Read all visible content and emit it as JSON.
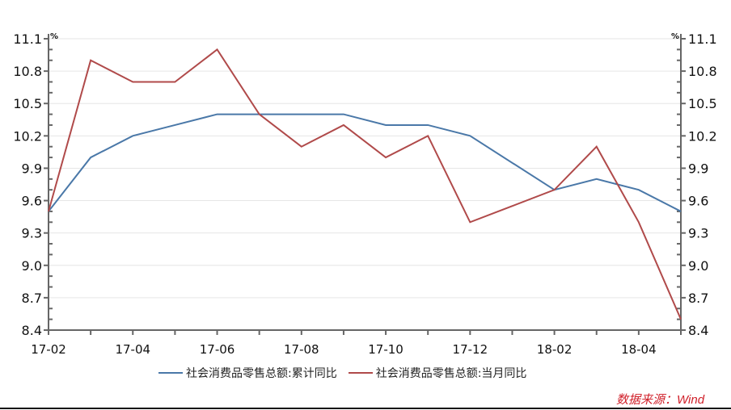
{
  "chart_data": {
    "type": "line",
    "title": "",
    "xlabel": "",
    "ylabel": "%",
    "y2label": "%",
    "ylim": [
      8.4,
      11.1
    ],
    "yticks": [
      8.4,
      8.7,
      9.0,
      9.3,
      9.6,
      9.9,
      10.2,
      10.5,
      10.8,
      11.1
    ],
    "x": [
      "17-02",
      "17-03",
      "17-04",
      "17-05",
      "17-06",
      "17-07",
      "17-08",
      "17-09",
      "17-10",
      "17-11",
      "17-12",
      "18-01",
      "18-02",
      "18-03",
      "18-04",
      "18-05"
    ],
    "xtick_labels": [
      "17-02",
      "17-04",
      "17-06",
      "17-08",
      "17-10",
      "17-12",
      "18-02",
      "18-04"
    ],
    "grid": true,
    "legend_position": "bottom",
    "series": [
      {
        "name": "社会消费品零售总额:累计同比",
        "color": "#4a78a8",
        "values": [
          9.5,
          10.0,
          10.2,
          10.3,
          10.4,
          10.4,
          10.4,
          10.4,
          10.3,
          10.3,
          10.2,
          null,
          9.7,
          9.8,
          9.7,
          9.5
        ]
      },
      {
        "name": "社会消费品零售总额:当月同比",
        "color": "#b04a4a",
        "values": [
          9.5,
          10.9,
          10.7,
          10.7,
          11.0,
          10.4,
          10.1,
          10.3,
          10.0,
          10.2,
          9.4,
          null,
          9.7,
          10.1,
          9.4,
          8.5
        ]
      }
    ]
  },
  "legend": {
    "items": [
      {
        "label": "社会消费品零售总额:累计同比",
        "color": "#4a78a8"
      },
      {
        "label": "社会消费品零售总额:当月同比",
        "color": "#b04a4a"
      }
    ]
  },
  "source": "数据来源：Wind"
}
